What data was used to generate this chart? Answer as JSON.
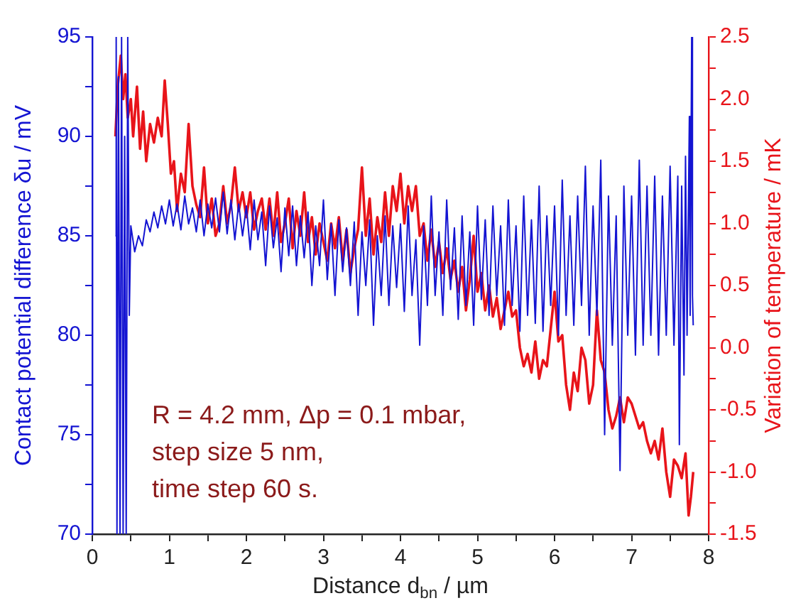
{
  "chart_data": {
    "type": "line",
    "xlabel": "Distance d$_{bn}$ / µm",
    "ylabel": "Contact potential difference δu / mV",
    "y2label": "Variation of temperature / mK",
    "marker": "none",
    "line_style": "solid",
    "xlim": [
      0,
      8
    ],
    "xticks": [
      0,
      {
        "value": 0.5,
        "label": null
      },
      1,
      {
        "value": 1.5,
        "label": null
      },
      2,
      {
        "value": 2.5,
        "label": null
      },
      3,
      {
        "value": 3.5,
        "label": null
      },
      4,
      {
        "value": 4.5,
        "label": null
      },
      5,
      {
        "value": 5.5,
        "label": null
      },
      6,
      {
        "value": 6.5,
        "label": null
      },
      7,
      {
        "value": 7.5,
        "label": null
      },
      8
    ],
    "ylim": [
      70,
      95
    ],
    "yticks": [
      70,
      {
        "value": 72.5,
        "label": null
      },
      75,
      {
        "value": 77.5,
        "label": null
      },
      80,
      {
        "value": 82.5,
        "label": null
      },
      85,
      {
        "value": 87.5,
        "label": null
      },
      90,
      {
        "value": 92.5,
        "label": null
      },
      95
    ],
    "y2lim": [
      -1.5,
      2.5
    ],
    "y2ticks": [
      {
        "value": -1.5,
        "label": "-1.5"
      },
      {
        "value": -1.25,
        "label": null
      },
      {
        "value": -1,
        "label": "-1.0"
      },
      {
        "value": -0.75,
        "label": null
      },
      {
        "value": -0.5,
        "label": "-0.5"
      },
      {
        "value": -0.25,
        "label": null
      },
      {
        "value": 0,
        "label": "0.0"
      },
      {
        "value": 0.25,
        "label": null
      },
      {
        "value": 0.5,
        "label": "0.5"
      },
      {
        "value": 0.75,
        "label": null
      },
      {
        "value": 1,
        "label": "1.0"
      },
      {
        "value": 1.25,
        "label": null
      },
      {
        "value": 1.5,
        "label": "1.5"
      },
      {
        "value": 1.75,
        "label": null
      },
      {
        "value": 2,
        "label": "2.0"
      },
      {
        "value": 2.25,
        "label": null
      },
      {
        "value": 2.5,
        "label": "2.5"
      }
    ],
    "annotations": [
      "R = 4.2 mm, Δp = 0.1 mbar,",
      "step size 5 nm,",
      "time step 60 s."
    ],
    "series": [
      {
        "color": "#1414d2",
        "x": [
          0.3,
          0.31,
          0.32,
          0.34,
          0.36,
          0.38,
          0.4,
          0.42,
          0.44,
          0.46,
          0.48,
          0.5,
          0.55,
          0.6,
          0.65,
          0.7,
          0.75,
          0.8,
          0.85,
          0.9,
          0.95,
          1,
          1.05,
          1.1,
          1.15,
          1.2,
          1.25,
          1.3,
          1.35,
          1.4,
          1.45,
          1.5,
          1.55,
          1.6,
          1.65,
          1.7,
          1.75,
          1.8,
          1.85,
          1.9,
          1.95,
          2,
          2.05,
          2.1,
          2.15,
          2.2,
          2.25,
          2.3,
          2.35,
          2.4,
          2.45,
          2.5,
          2.55,
          2.6,
          2.65,
          2.7,
          2.75,
          2.8,
          2.85,
          2.9,
          2.95,
          3,
          3.05,
          3.1,
          3.15,
          3.2,
          3.25,
          3.3,
          3.35,
          3.4,
          3.45,
          3.5,
          3.55,
          3.6,
          3.65,
          3.7,
          3.75,
          3.8,
          3.85,
          3.9,
          3.95,
          4,
          4.05,
          4.1,
          4.15,
          4.2,
          4.25,
          4.3,
          4.35,
          4.4,
          4.45,
          4.5,
          4.55,
          4.6,
          4.65,
          4.7,
          4.75,
          4.8,
          4.85,
          4.9,
          4.95,
          5,
          5.05,
          5.1,
          5.15,
          5.2,
          5.25,
          5.3,
          5.35,
          5.4,
          5.45,
          5.5,
          5.55,
          5.6,
          5.65,
          5.7,
          5.75,
          5.8,
          5.85,
          5.9,
          5.95,
          6,
          6.05,
          6.1,
          6.15,
          6.2,
          6.25,
          6.3,
          6.35,
          6.4,
          6.45,
          6.5,
          6.55,
          6.6,
          6.65,
          6.7,
          6.75,
          6.8,
          6.85,
          6.9,
          6.95,
          7,
          7.05,
          7.1,
          7.15,
          7.2,
          7.25,
          7.3,
          7.35,
          7.4,
          7.45,
          7.5,
          7.55,
          7.6,
          7.62,
          7.65,
          7.68,
          7.7,
          7.72,
          7.75,
          7.76,
          7.78,
          7.79,
          7.8
        ],
        "values": [
          85,
          95,
          70,
          93,
          70,
          95,
          70,
          90,
          70,
          95,
          81,
          85.5,
          84.2,
          85,
          84.5,
          85.8,
          85.2,
          86.2,
          85.4,
          86.5,
          85.6,
          86.8,
          85.5,
          86.6,
          85.3,
          87,
          85.6,
          86.4,
          85.2,
          86.8,
          85,
          86.6,
          85.4,
          86.9,
          85.2,
          87.2,
          85.1,
          86.8,
          84.8,
          86.6,
          85,
          86.5,
          84.3,
          86.8,
          84.8,
          86.2,
          83.5,
          86.5,
          84.4,
          85.9,
          83.2,
          86.4,
          84,
          86.5,
          83.5,
          86,
          83.9,
          86.2,
          82.5,
          85.5,
          83.5,
          86.8,
          82.8,
          85.6,
          82,
          85.8,
          83.2,
          85.4,
          82.5,
          85.7,
          81,
          85.2,
          82.5,
          85.8,
          80.5,
          85,
          82,
          86,
          81.5,
          85.5,
          82.4,
          85.6,
          81.2,
          86.5,
          82,
          84.8,
          79.5,
          85.5,
          81.5,
          87,
          82,
          85.2,
          81,
          86.8,
          82.3,
          85.4,
          80.8,
          86,
          81.5,
          85.2,
          80.5,
          86.5,
          81.8,
          85.8,
          81,
          86.5,
          82,
          85.5,
          80.5,
          86.8,
          81.5,
          85.5,
          80.2,
          87,
          81,
          85.8,
          80.6,
          87.5,
          80.2,
          86,
          81.5,
          86.5,
          80,
          87.8,
          81,
          86,
          80.5,
          87,
          81.5,
          88.5,
          80,
          86.5,
          81,
          88.8,
          75,
          87,
          79.5,
          86,
          73.2,
          87.5,
          80,
          87,
          79,
          88.8,
          79.5,
          87.5,
          80,
          88,
          79,
          87,
          80,
          88.5,
          79.5,
          88,
          74.5,
          87.5,
          78,
          89,
          80,
          91,
          81,
          95,
          82,
          80.5
        ]
      },
      {
        "color": "#e8141a",
        "axis": "y2",
        "x": [
          0.3,
          0.33,
          0.37,
          0.4,
          0.43,
          0.46,
          0.5,
          0.53,
          0.58,
          0.62,
          0.66,
          0.7,
          0.75,
          0.8,
          0.85,
          0.9,
          0.94,
          0.98,
          1.02,
          1.06,
          1.1,
          1.15,
          1.2,
          1.25,
          1.3,
          1.35,
          1.4,
          1.45,
          1.5,
          1.55,
          1.6,
          1.65,
          1.7,
          1.75,
          1.8,
          1.85,
          1.9,
          1.95,
          2,
          2.05,
          2.1,
          2.15,
          2.2,
          2.25,
          2.3,
          2.35,
          2.4,
          2.45,
          2.5,
          2.55,
          2.6,
          2.65,
          2.7,
          2.75,
          2.8,
          2.85,
          2.9,
          2.95,
          3,
          3.05,
          3.1,
          3.15,
          3.2,
          3.25,
          3.3,
          3.35,
          3.4,
          3.45,
          3.5,
          3.55,
          3.6,
          3.65,
          3.7,
          3.75,
          3.8,
          3.85,
          3.9,
          3.95,
          4,
          4.05,
          4.1,
          4.15,
          4.2,
          4.25,
          4.3,
          4.35,
          4.4,
          4.45,
          4.5,
          4.55,
          4.6,
          4.65,
          4.7,
          4.75,
          4.8,
          4.85,
          4.9,
          4.95,
          5,
          5.05,
          5.1,
          5.15,
          5.2,
          5.25,
          5.3,
          5.35,
          5.4,
          5.45,
          5.5,
          5.55,
          5.6,
          5.65,
          5.7,
          5.75,
          5.8,
          5.85,
          5.9,
          5.95,
          6,
          6.05,
          6.1,
          6.15,
          6.2,
          6.25,
          6.3,
          6.35,
          6.4,
          6.45,
          6.5,
          6.55,
          6.6,
          6.65,
          6.7,
          6.75,
          6.8,
          6.85,
          6.9,
          6.95,
          7,
          7.05,
          7.1,
          7.15,
          7.2,
          7.25,
          7.3,
          7.35,
          7.4,
          7.45,
          7.5,
          7.55,
          7.6,
          7.65,
          7.7,
          7.74,
          7.77,
          7.8
        ],
        "values": [
          1.7,
          2.1,
          2.35,
          2,
          2.2,
          1.85,
          2,
          1.7,
          2.1,
          1.6,
          1.9,
          1.5,
          1.8,
          1.65,
          1.85,
          1.7,
          2.15,
          1.8,
          1.4,
          1.5,
          1.1,
          1.4,
          1.25,
          1.8,
          1.3,
          1.15,
          1.05,
          1.45,
          1,
          1.2,
          0.9,
          1,
          1.3,
          1,
          1.15,
          1.45,
          1.1,
          1.25,
          1.05,
          1.25,
          0.95,
          1.1,
          1.2,
          0.95,
          1.2,
          0.9,
          1.25,
          0.85,
          1,
          1.2,
          0.8,
          1.1,
          0.9,
          1.25,
          0.85,
          1.05,
          0.75,
          1,
          0.85,
          0.7,
          1,
          0.8,
          1.05,
          0.7,
          0.95,
          0.6,
          0.8,
          0.95,
          1.45,
          0.9,
          1.2,
          0.75,
          1.05,
          0.85,
          1.25,
          0.9,
          1.3,
          1.1,
          1.4,
          1,
          1.3,
          1.1,
          1.3,
          0.9,
          1,
          0.7,
          0.95,
          0.65,
          0.85,
          0.6,
          0.8,
          0.55,
          0.7,
          0.45,
          0.65,
          0.3,
          0.55,
          0.9,
          0.45,
          0.6,
          0.3,
          0.5,
          0.25,
          0.4,
          0.15,
          0.3,
          0.45,
          0.25,
          0.3,
          0,
          -0.15,
          -0.05,
          -0.2,
          0.05,
          -0.25,
          -0.1,
          -0.15,
          0.15,
          0.45,
          0.05,
          0.1,
          -0.3,
          -0.5,
          -0.2,
          -0.35,
          0,
          -0.1,
          -0.45,
          -0.3,
          0.3,
          -0.1,
          -0.2,
          -0.5,
          -0.65,
          -0.55,
          -0.4,
          -0.6,
          -0.4,
          -0.45,
          -0.55,
          -0.65,
          -0.6,
          -0.75,
          -0.85,
          -0.75,
          -0.9,
          -0.65,
          -1,
          -1.2,
          -0.9,
          -0.95,
          -1.05,
          -0.85,
          -1.35,
          -1.2,
          -1
        ]
      }
    ]
  }
}
